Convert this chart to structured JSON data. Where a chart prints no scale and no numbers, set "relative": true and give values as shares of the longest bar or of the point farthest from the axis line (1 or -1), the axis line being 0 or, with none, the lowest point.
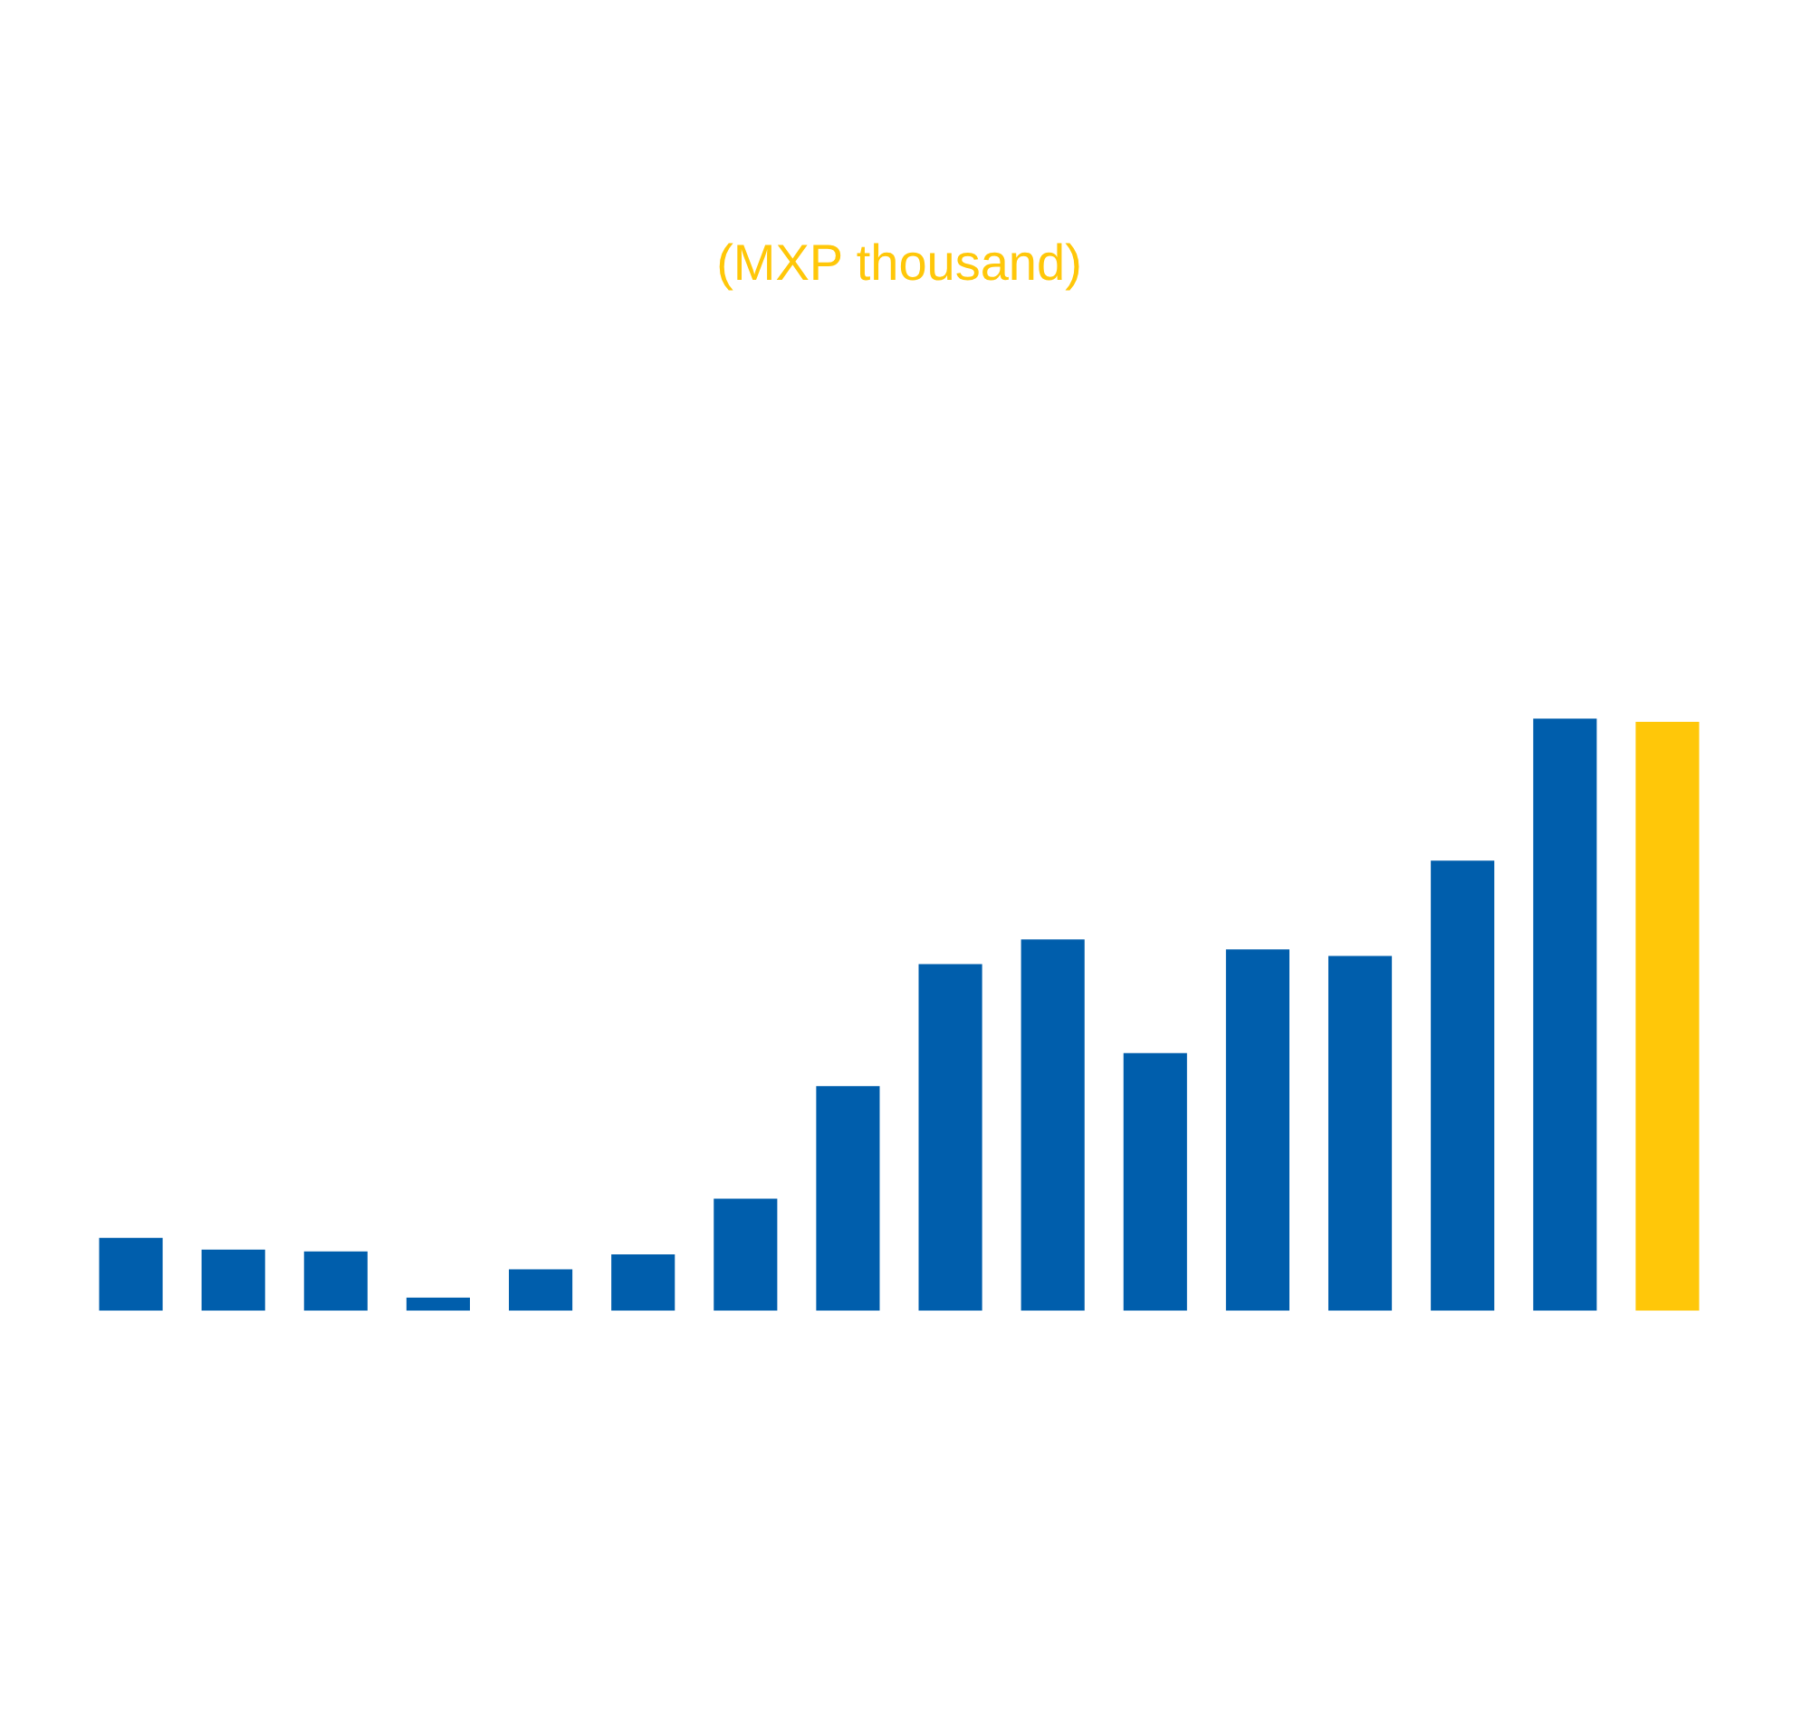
{
  "chart_data": {
    "type": "bar",
    "title": "(MXP thousand)",
    "relative": true,
    "categories": [
      null,
      null,
      null,
      null,
      null,
      null,
      null,
      null,
      null,
      null,
      null,
      null,
      null,
      null,
      null,
      null
    ],
    "values": [
      0.123,
      0.103,
      0.1,
      0.022,
      0.07,
      0.095,
      0.189,
      0.379,
      0.585,
      0.627,
      0.435,
      0.61,
      0.599,
      0.76,
      1,
      0.994
    ],
    "colors": [
      "#005eac",
      "#005eac",
      "#005eac",
      "#005eac",
      "#005eac",
      "#005eac",
      "#005eac",
      "#005eac",
      "#005eac",
      "#005eac",
      "#005eac",
      "#005eac",
      "#005eac",
      "#005eac",
      "#005eac",
      "#ffc709"
    ],
    "legend": false,
    "grid": false
  }
}
